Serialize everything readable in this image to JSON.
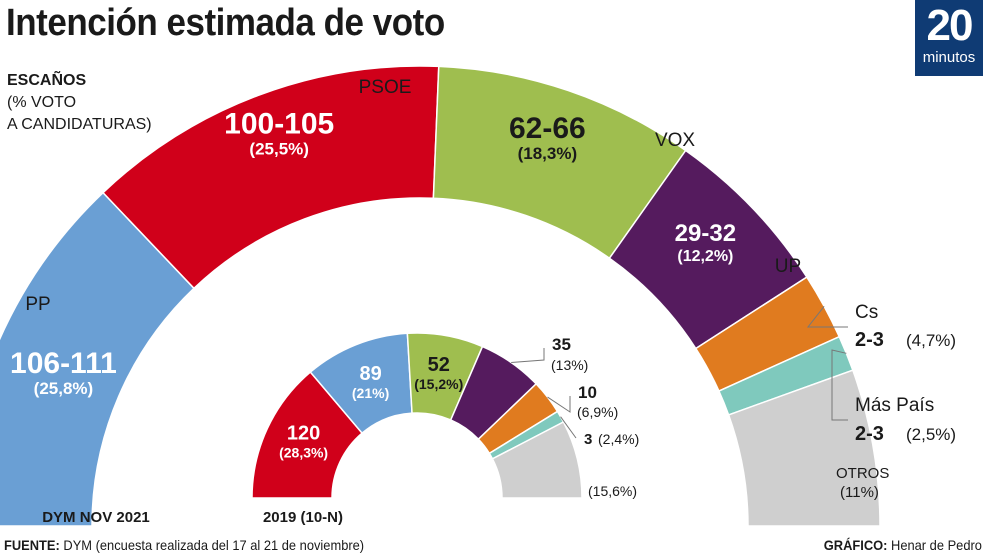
{
  "title": "Intención estimada de voto",
  "logo": {
    "number": "20",
    "word": "minutos"
  },
  "legend": {
    "head": "ESCAÑOS",
    "line2": "(% VOTO",
    "line3": "A CANDIDATURAS)"
  },
  "footer": {
    "label": "FUENTE:",
    "text": " DYM (encuesta realizada del 17 al 21 de noviembre)"
  },
  "credit": {
    "label": "GRÁFICO:",
    "text": " Henar de Pedro"
  },
  "chart_data": [
    {
      "type": "pie",
      "title": "DYM NOV 2021",
      "series": [
        {
          "name": "PP",
          "seats": "106-111",
          "pct": 25.8,
          "pct_label": "(25,8%)",
          "color": "#6a9fd4"
        },
        {
          "name": "PSOE",
          "seats": "100-105",
          "pct": 25.5,
          "pct_label": "(25,5%)",
          "color": "#d0001a"
        },
        {
          "name": "VOX",
          "seats": "62-66",
          "pct": 18.3,
          "pct_label": "(18,3%)",
          "color": "#9fbe4f"
        },
        {
          "name": "UP",
          "seats": "29-32",
          "pct": 12.2,
          "pct_label": "(12,2%)",
          "color": "#551b5e"
        },
        {
          "name": "Cs",
          "seats": "2-3",
          "pct": 4.7,
          "pct_label": "(4,7%)",
          "color": "#e07b1f"
        },
        {
          "name": "Más País",
          "seats": "2-3",
          "pct": 2.5,
          "pct_label": "(2,5%)",
          "color": "#7fc9bd"
        },
        {
          "name": "OTROS",
          "seats": "",
          "pct": 11,
          "pct_label": "(11%)",
          "color": "#cfcfcf"
        }
      ]
    },
    {
      "type": "pie",
      "title": "2019 (10-N)",
      "series": [
        {
          "name": "PSOE",
          "seats": "120",
          "pct": 28.3,
          "pct_label": "(28,3%)",
          "color": "#d0001a"
        },
        {
          "name": "PP",
          "seats": "89",
          "pct": 21,
          "pct_label": "(21%)",
          "color": "#6a9fd4"
        },
        {
          "name": "VOX",
          "seats": "52",
          "pct": 15.2,
          "pct_label": "(15,2%)",
          "color": "#9fbe4f"
        },
        {
          "name": "UP",
          "seats": "35",
          "pct": 13,
          "pct_label": "(13%)",
          "color": "#551b5e"
        },
        {
          "name": "Cs",
          "seats": "10",
          "pct": 6.9,
          "pct_label": "(6,9%)",
          "color": "#e07b1f"
        },
        {
          "name": "Más País",
          "seats": "3",
          "pct": 2.4,
          "pct_label": "(2,4%)",
          "color": "#7fc9bd"
        },
        {
          "name": "OTROS",
          "seats": "",
          "pct": 15.6,
          "pct_label": "(15,6%)",
          "color": "#cfcfcf"
        }
      ]
    }
  ]
}
